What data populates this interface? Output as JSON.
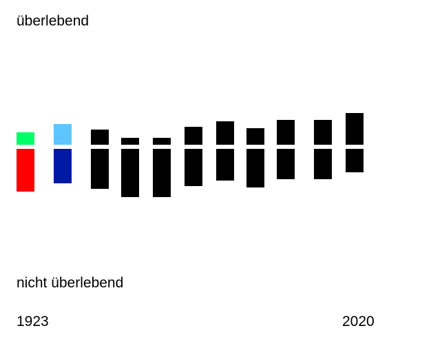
{
  "chart_data": {
    "type": "bar",
    "top_label": "überlebend",
    "bottom_label": "nicht überlebend",
    "x_start_label": "1923",
    "x_end_label": "2020",
    "series": [
      {
        "values": [
          18,
          30,
          22,
          10,
          10,
          26,
          34,
          24,
          36,
          36,
          46
        ]
      },
      {
        "values": [
          62,
          50,
          58,
          70,
          70,
          54,
          46,
          56,
          44,
          44,
          34
        ]
      }
    ],
    "top_colors": [
      "#00ff66",
      "#5ec5ff",
      "#000000",
      "#000000",
      "#000000",
      "#000000",
      "#000000",
      "#000000",
      "#000000",
      "#000000",
      "#000000"
    ],
    "bottom_colors": [
      "#ff0000",
      "#001aa5",
      "#000000",
      "#000000",
      "#000000",
      "#000000",
      "#000000",
      "#000000",
      "#000000",
      "#000000",
      "#000000"
    ],
    "grid": false,
    "legend": "none"
  }
}
